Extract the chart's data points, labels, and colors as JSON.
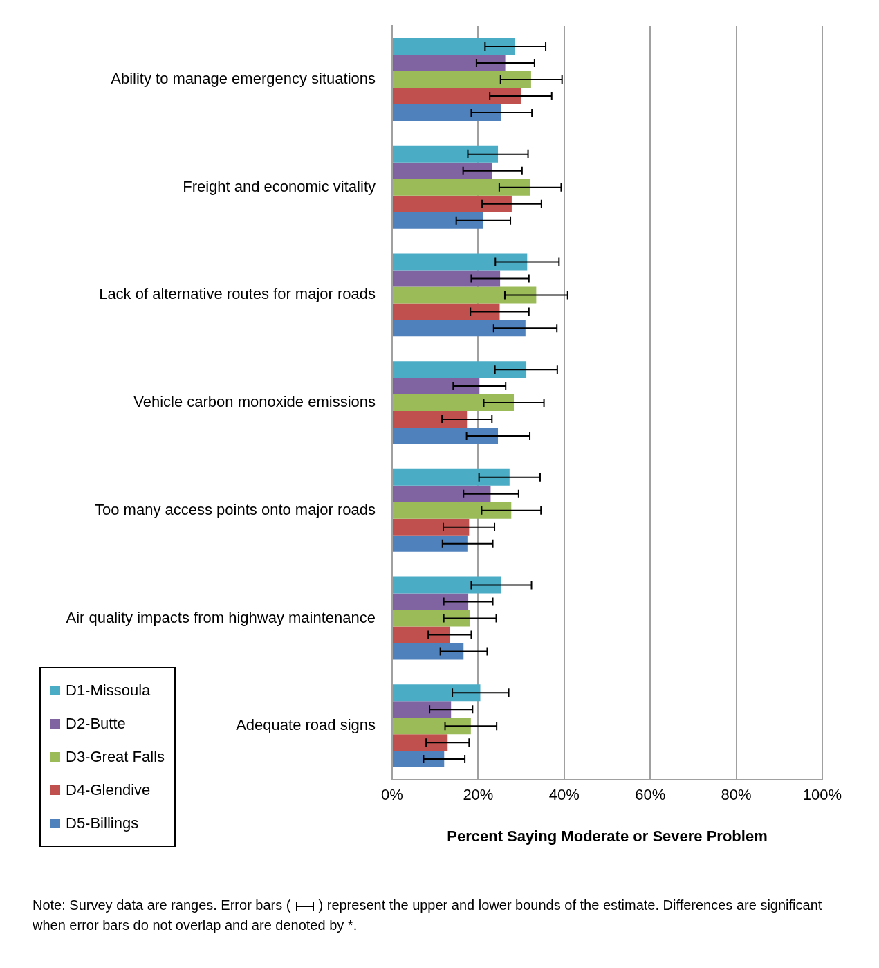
{
  "chart_data": {
    "type": "bar",
    "orientation": "horizontal",
    "xlabel": "Percent Saying Moderate or Severe Problem",
    "categories": [
      "Ability to manage emergency situations",
      "Freight and economic vitality",
      "Lack of alternative routes for major roads",
      "Vehicle carbon monoxide emissions",
      "Too many access points onto major roads",
      "Air quality impacts from highway maintenance",
      "Adequate road signs"
    ],
    "series": [
      {
        "name": "D1-Missoula",
        "color": "#4bacc6",
        "values": [
          28.6,
          24.6,
          31.4,
          31.2,
          27.3,
          25.3,
          20.5
        ],
        "errors": [
          [
            21.6,
            35.7
          ],
          [
            17.6,
            31.6
          ],
          [
            24.0,
            38.8
          ],
          [
            23.9,
            38.4
          ],
          [
            20.2,
            34.4
          ],
          [
            18.4,
            32.4
          ],
          [
            14.0,
            27.1
          ]
        ]
      },
      {
        "name": "D2-Butte",
        "color": "#8064a2",
        "values": [
          26.3,
          23.3,
          25.1,
          20.3,
          22.9,
          17.7,
          13.7
        ],
        "errors": [
          [
            19.6,
            33.1
          ],
          [
            16.5,
            30.2
          ],
          [
            18.4,
            31.8
          ],
          [
            14.2,
            26.4
          ],
          [
            16.6,
            29.4
          ],
          [
            12.0,
            23.4
          ],
          [
            8.7,
            18.7
          ]
        ]
      },
      {
        "name": "D3-Great Falls",
        "color": "#9bbb59",
        "values": [
          32.3,
          32.0,
          33.5,
          28.3,
          27.7,
          18.1,
          18.3
        ],
        "errors": [
          [
            25.2,
            39.5
          ],
          [
            24.9,
            39.3
          ],
          [
            26.2,
            40.8
          ],
          [
            21.3,
            35.3
          ],
          [
            20.8,
            34.6
          ],
          [
            12.0,
            24.2
          ],
          [
            12.3,
            24.3
          ]
        ]
      },
      {
        "name": "D4-Glendive",
        "color": "#c0504d",
        "values": [
          29.9,
          27.8,
          25.0,
          17.4,
          17.9,
          13.4,
          12.9
        ],
        "errors": [
          [
            22.7,
            37.1
          ],
          [
            20.9,
            34.7
          ],
          [
            18.2,
            31.8
          ],
          [
            11.6,
            23.2
          ],
          [
            11.9,
            23.8
          ],
          [
            8.4,
            18.4
          ],
          [
            7.9,
            17.9
          ]
        ]
      },
      {
        "name": "D5-Billings",
        "color": "#4f81bd",
        "values": [
          25.4,
          21.2,
          31.0,
          24.6,
          17.5,
          16.6,
          12.1
        ],
        "errors": [
          [
            18.4,
            32.5
          ],
          [
            14.9,
            27.5
          ],
          [
            23.6,
            38.3
          ],
          [
            17.3,
            32.0
          ],
          [
            11.7,
            23.4
          ],
          [
            11.2,
            22.1
          ],
          [
            7.3,
            16.9
          ]
        ]
      }
    ],
    "xlim": [
      0,
      100
    ],
    "xticks": [
      {
        "value": 0,
        "label": "0%"
      },
      {
        "value": 20,
        "label": "20%"
      },
      {
        "value": 40,
        "label": "40%"
      },
      {
        "value": 60,
        "label": "60%"
      },
      {
        "value": 80,
        "label": "80%"
      },
      {
        "value": 100,
        "label": "100%"
      }
    ],
    "grid": "x",
    "legend": "bottom left",
    "annotations": [
      "Note:  Survey data are ranges.  Error bars (",
      ") represent the upper and lower bounds of the estimate. Differences are significant when error bars do not overlap and are denoted by *."
    ]
  }
}
